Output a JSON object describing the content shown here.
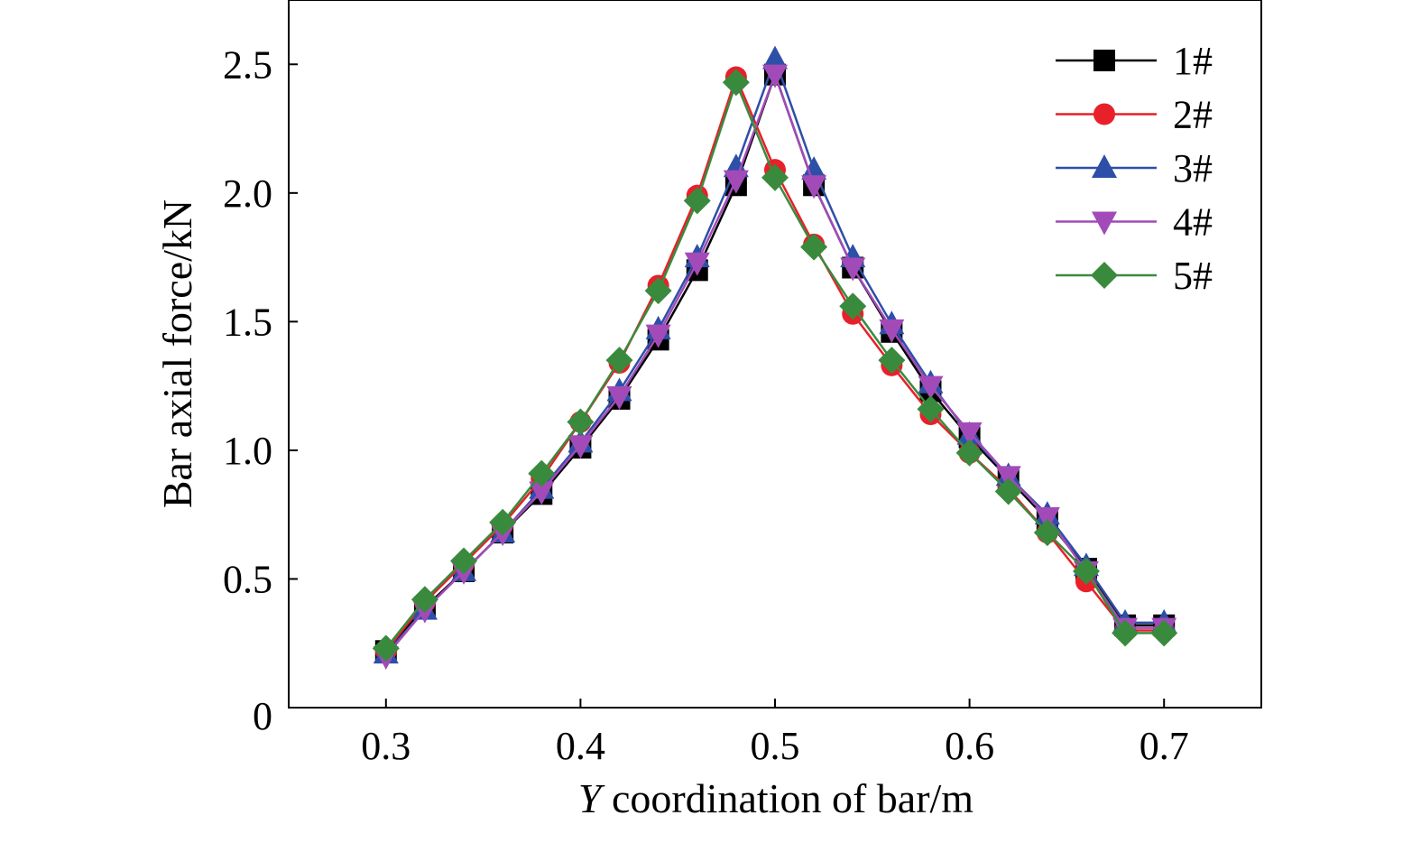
{
  "chart_data": {
    "type": "line",
    "title": "",
    "xlabel_italic": "Y",
    "xlabel": " coordination of bar/m",
    "ylabel": "Bar axial force/kN",
    "xlim": [
      0.25,
      0.75
    ],
    "ylim": [
      0,
      2.75
    ],
    "xticks": [
      0.3,
      0.4,
      0.5,
      0.6,
      0.7
    ],
    "xtick_labels": [
      "0.3",
      "0.4",
      "0.5",
      "0.6",
      "0.7"
    ],
    "yticks": [
      0,
      0.5,
      1.0,
      1.5,
      2.0,
      2.5
    ],
    "ytick_labels": [
      "0",
      "0.5",
      "1.0",
      "1.5",
      "2.0",
      "2.5"
    ],
    "grid": false,
    "legend_position": "top-right",
    "x": [
      0.3,
      0.32,
      0.34,
      0.36,
      0.38,
      0.4,
      0.42,
      0.44,
      0.46,
      0.48,
      0.5,
      0.52,
      0.54,
      0.56,
      0.58,
      0.6,
      0.62,
      0.64,
      0.66,
      0.68,
      0.7
    ],
    "series": [
      {
        "name": "1#",
        "color": "#000000",
        "marker": "square",
        "values": [
          0.22,
          0.39,
          0.53,
          0.68,
          0.83,
          1.01,
          1.2,
          1.43,
          1.7,
          2.03,
          2.46,
          2.03,
          1.71,
          1.46,
          1.23,
          1.05,
          0.89,
          0.73,
          0.54,
          0.32,
          0.32
        ]
      },
      {
        "name": "2#",
        "color": "#e8202a",
        "marker": "circle",
        "values": [
          0.22,
          0.41,
          0.56,
          0.71,
          0.89,
          1.11,
          1.34,
          1.64,
          1.99,
          2.45,
          2.09,
          1.8,
          1.53,
          1.33,
          1.14,
          0.99,
          0.85,
          0.68,
          0.49,
          0.3,
          0.3
        ]
      },
      {
        "name": "3#",
        "color": "#2e4fa8",
        "marker": "triangle-up",
        "values": [
          0.21,
          0.38,
          0.53,
          0.68,
          0.85,
          1.03,
          1.23,
          1.47,
          1.75,
          2.1,
          2.52,
          2.09,
          1.75,
          1.49,
          1.26,
          1.06,
          0.9,
          0.75,
          0.55,
          0.33,
          0.33
        ]
      },
      {
        "name": "4#",
        "color": "#a24bb8",
        "marker": "triangle-down",
        "values": [
          0.2,
          0.38,
          0.53,
          0.68,
          0.84,
          1.02,
          1.21,
          1.45,
          1.73,
          2.05,
          2.46,
          2.03,
          1.71,
          1.47,
          1.25,
          1.07,
          0.9,
          0.74,
          0.53,
          0.31,
          0.31
        ]
      },
      {
        "name": "5#",
        "color": "#3a8a3e",
        "marker": "diamond",
        "values": [
          0.23,
          0.42,
          0.57,
          0.72,
          0.91,
          1.11,
          1.35,
          1.62,
          1.97,
          2.43,
          2.06,
          1.79,
          1.56,
          1.35,
          1.16,
          0.99,
          0.84,
          0.68,
          0.53,
          0.29,
          0.29
        ]
      }
    ]
  }
}
